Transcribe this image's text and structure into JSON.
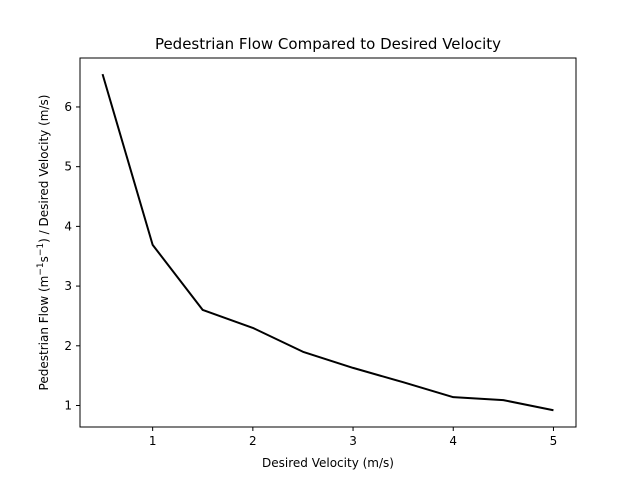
{
  "chart_data": {
    "type": "line",
    "title": "Pedestrian Flow Compared to Desired Velocity",
    "xlabel": "Desired Velocity (m/s)",
    "ylabel": {
      "prefix": "Pedestrian Flow (m",
      "sup1": "−1",
      "mid": "s",
      "sup2": "−1",
      "suffix": ") / Desired Velocity (m/s)"
    },
    "xlim": [
      0.275,
      5.225
    ],
    "ylim": [
      0.64,
      6.82
    ],
    "xticks": [
      1,
      2,
      3,
      4,
      5
    ],
    "yticks": [
      1,
      2,
      3,
      4,
      5,
      6
    ],
    "grid": false,
    "series": [
      {
        "color": "#000000",
        "x": [
          0.5,
          1.0,
          1.5,
          2.0,
          2.5,
          3.0,
          3.5,
          4.0,
          4.5,
          5.0
        ],
        "y": [
          6.55,
          3.69,
          2.6,
          2.3,
          1.9,
          1.63,
          1.39,
          1.14,
          1.09,
          0.92
        ]
      }
    ]
  }
}
